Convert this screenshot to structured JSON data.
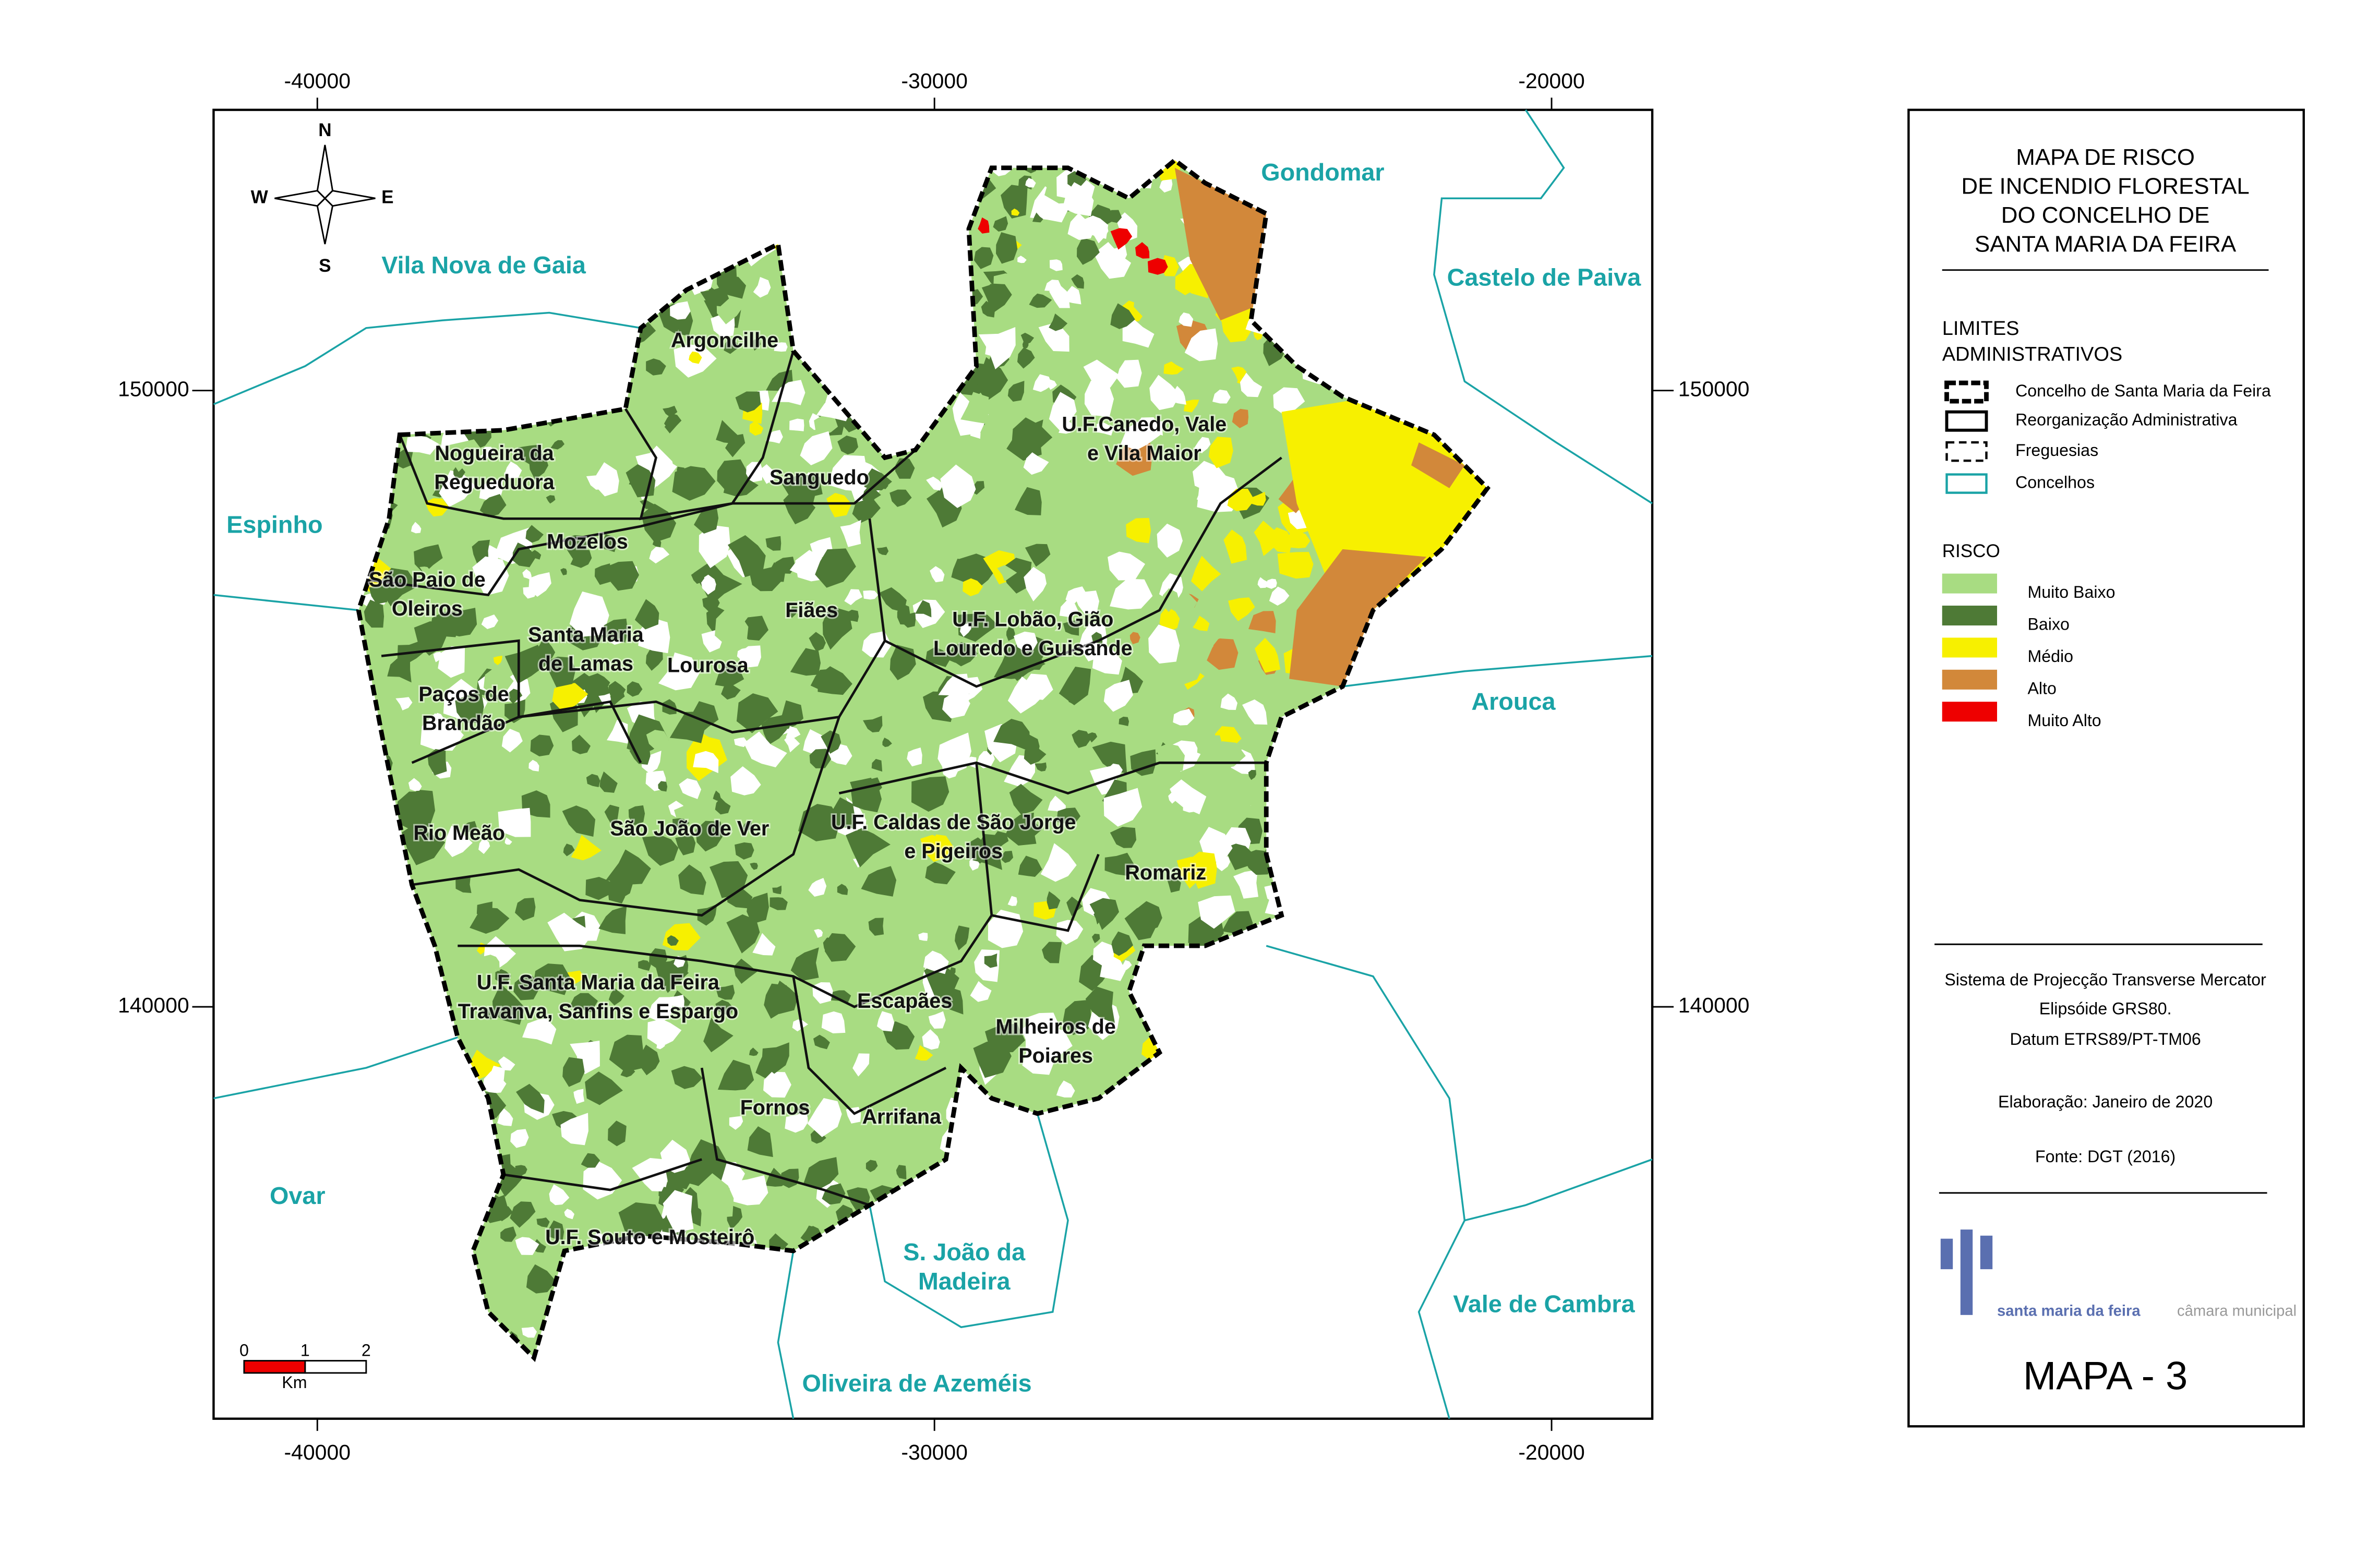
{
  "coordinates": {
    "x_ticks": [
      -40000,
      -30000,
      -20000
    ],
    "y_ticks": [
      150000,
      140000
    ]
  },
  "municipalities": [
    [
      "Gondomar"
    ],
    [
      "Vila Nova de Gaia"
    ],
    [
      "Castelo de Paiva"
    ],
    [
      "Espinho"
    ],
    [
      "Arouca"
    ],
    [
      "Ovar"
    ],
    [
      "S. João da",
      "Madeira"
    ],
    [
      "Vale de Cambra"
    ],
    [
      "Oliveira de Azeméis"
    ]
  ],
  "parishes": [
    [
      "Argoncilhe"
    ],
    [
      "Nogueira da",
      "Regueduora"
    ],
    [
      "Sanguedo"
    ],
    [
      "U.F.Canedo, Vale",
      "e Vila Maior"
    ],
    [
      "Mozelos"
    ],
    [
      "São Paio de",
      "Oleiros"
    ],
    [
      "Fiães"
    ],
    [
      "Santa Maria",
      "de Lamas"
    ],
    [
      "Lourosa"
    ],
    [
      "U.F. Lobão, Gião",
      "Louredo e Guisande"
    ],
    [
      "Paços de",
      "Brandão"
    ],
    [
      "Rio Meão"
    ],
    [
      "São João de Ver"
    ],
    [
      "U.F. Caldas de São Jorge",
      "e Pigeiros"
    ],
    [
      "Romariz"
    ],
    [
      "U.F. Santa Maria da Feira",
      "Travanva, Sanfins e Espargo"
    ],
    [
      "Escapães"
    ],
    [
      "Milheiros de",
      "Poiares"
    ],
    [
      "Fornos"
    ],
    [
      "Arrifana"
    ],
    [
      "U.F. Souto e Mosteirô"
    ]
  ],
  "compass": {
    "n": "N",
    "s": "S",
    "e": "E",
    "w": "W"
  },
  "scale_bar": {
    "ticks": [
      0,
      1,
      2
    ],
    "unit": "Km"
  },
  "legend": {
    "title": [
      "MAPA DE RISCO",
      "DE INCENDIO FLORESTAL",
      "DO  CONCELHO DE",
      "SANTA MARIA DA FEIRA"
    ],
    "limits_title": [
      "LIMITES",
      "ADMINISTRATIVOS"
    ],
    "limits": [
      "Concelho de Santa Maria da Feira",
      "Reorganização Administrativa",
      "Freguesias",
      "Concelhos"
    ],
    "risk_title": "RISCO",
    "risk": [
      {
        "label": "Muito Baixo",
        "color": "#a8dc82"
      },
      {
        "label": "Baixo",
        "color": "#4e7a36"
      },
      {
        "label": "Médio",
        "color": "#f7f000"
      },
      {
        "label": "Alto",
        "color": "#d2883a"
      },
      {
        "label": "Muito Alto",
        "color": "#ee0000"
      }
    ]
  },
  "info": [
    "Sistema de Projecção Transverse  Mercator",
    "Elipsóide GRS80.",
    "Datum ETRS89/PT-TM06",
    "Elaboração: Janeiro de 2020",
    "Fonte: DGT (2016)"
  ],
  "logo": {
    "name": "santa maria da feira",
    "sub": "câmara municipal"
  },
  "map_number": "MAPA - 3"
}
